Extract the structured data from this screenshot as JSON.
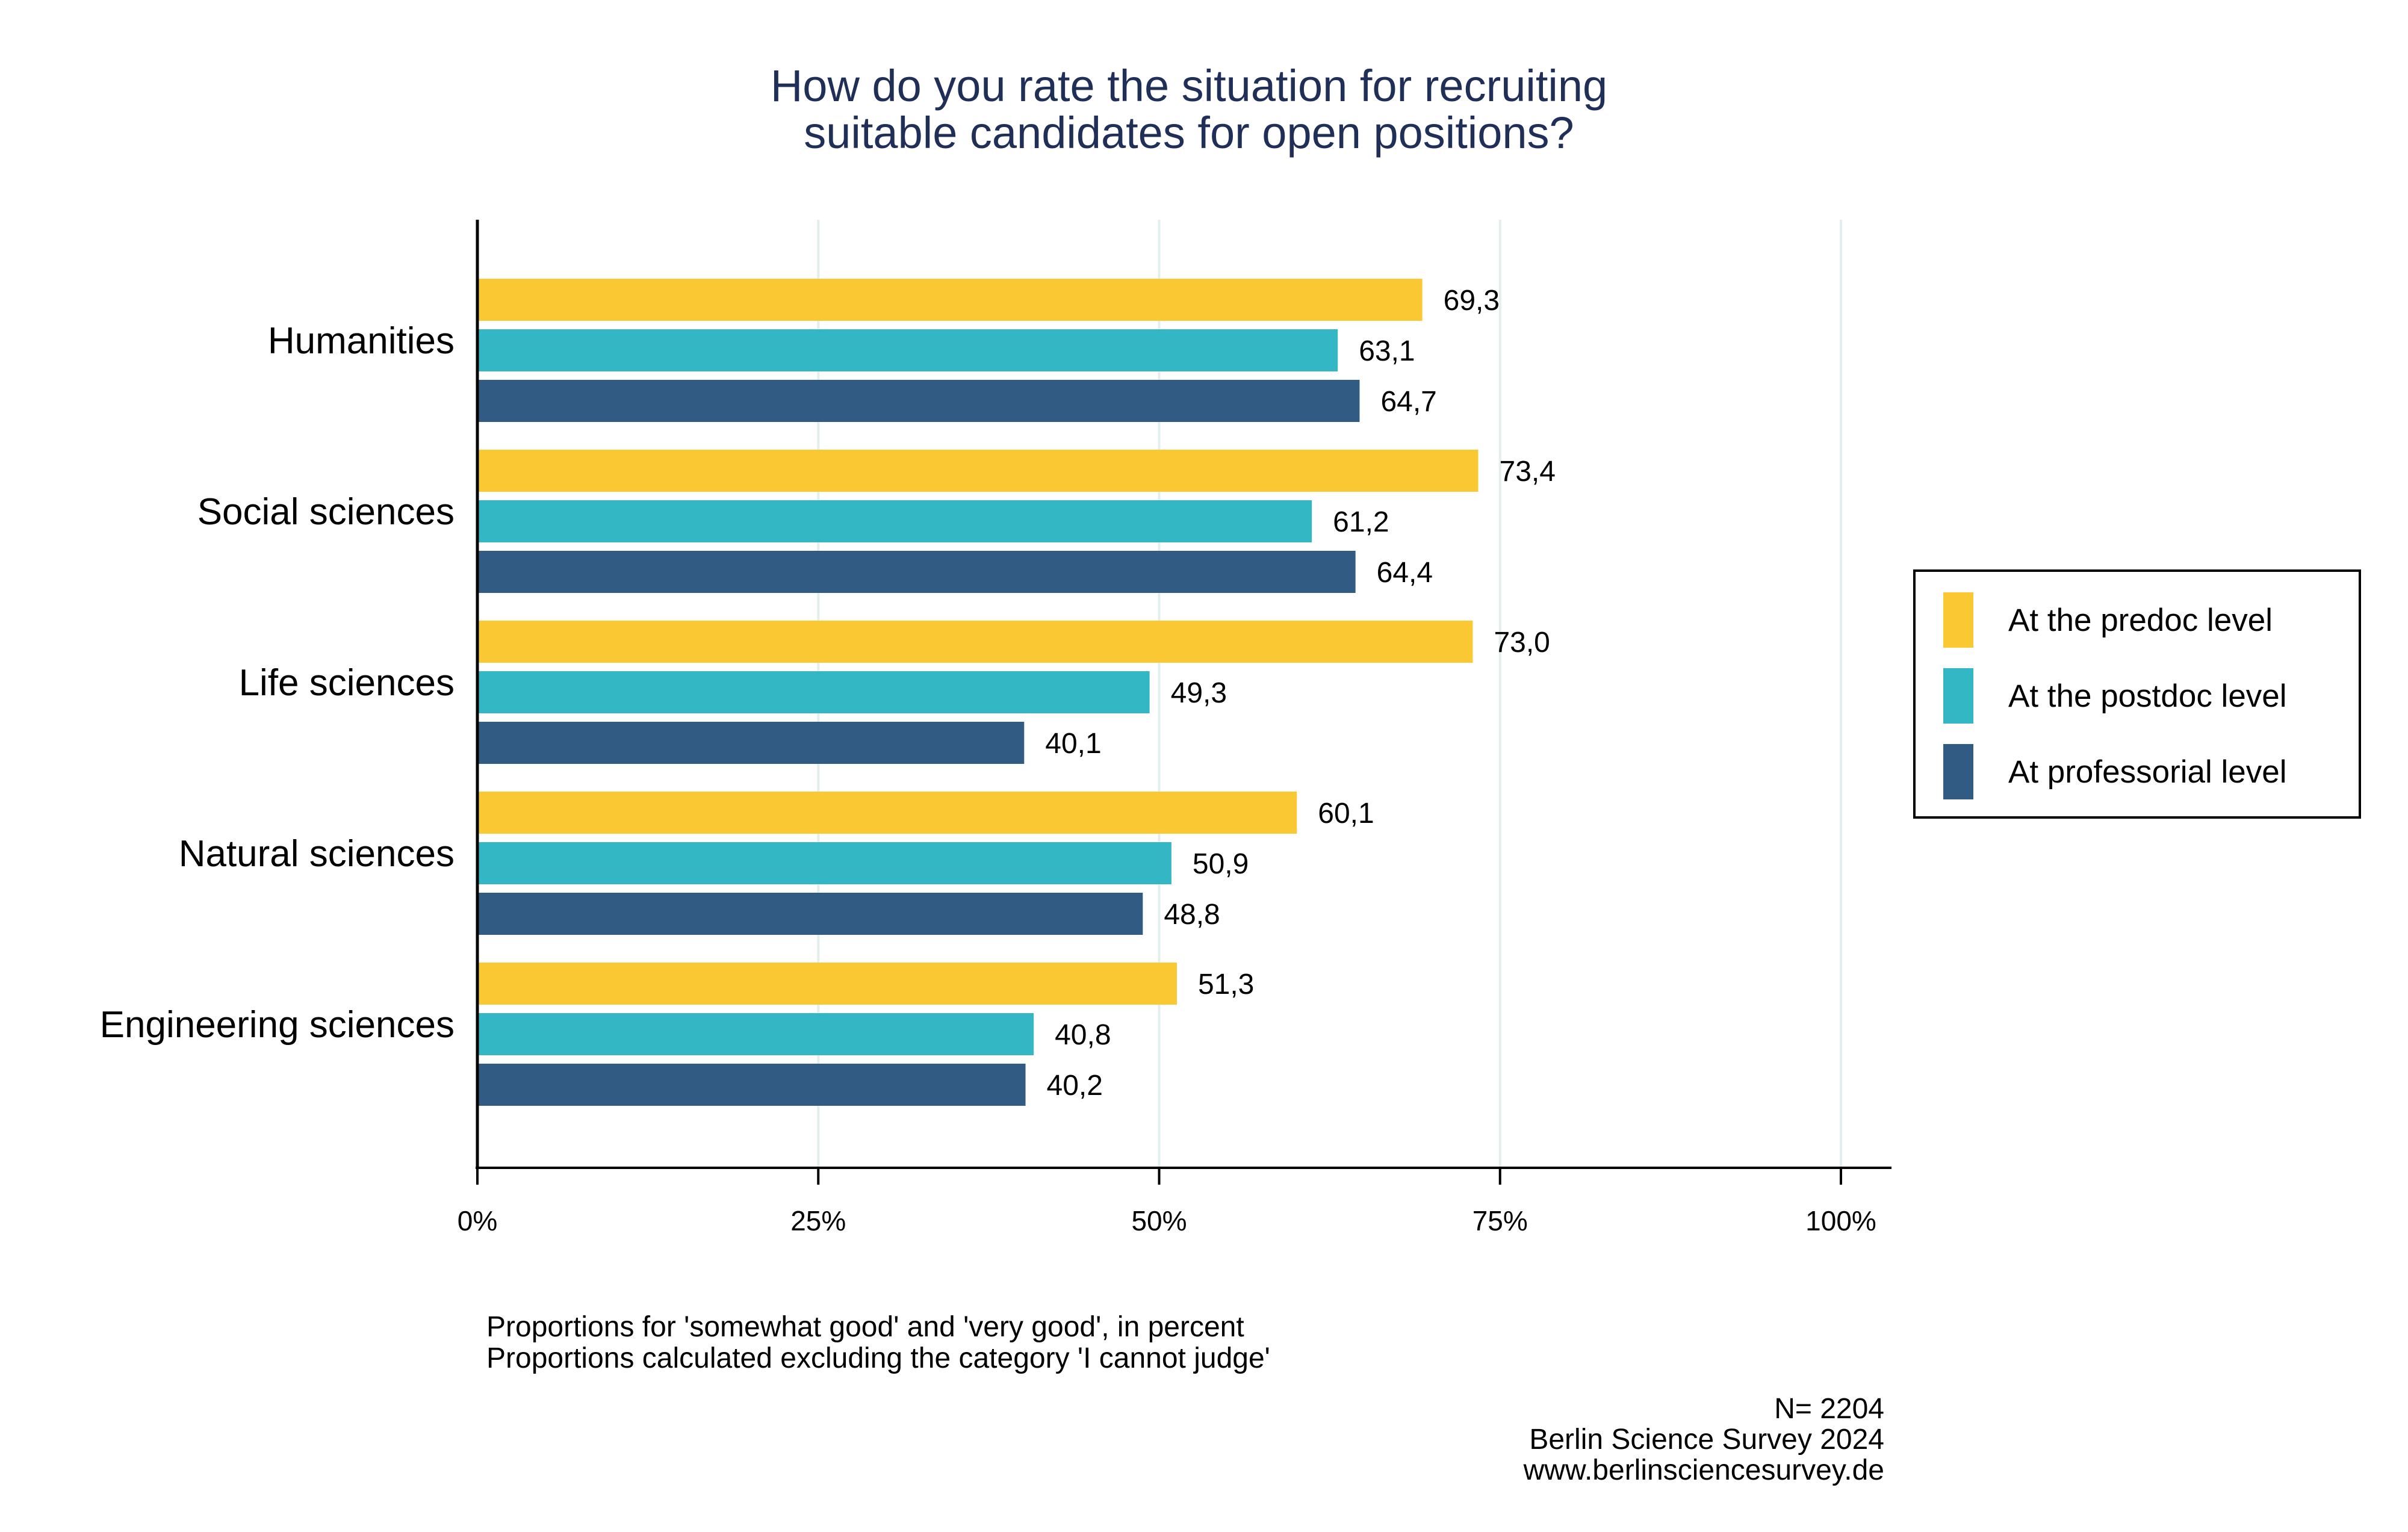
{
  "chart_data": {
    "type": "bar",
    "orientation": "horizontal",
    "title_lines": [
      "How do you rate the situation for recruiting",
      "suitable candidates for open positions?"
    ],
    "categories": [
      "Humanities",
      "Social sciences",
      "Life sciences",
      "Natural sciences",
      "Engineering sciences"
    ],
    "series": [
      {
        "name": "At the predoc level",
        "color": "#f9c832",
        "values": [
          69.3,
          73.4,
          73.0,
          60.1,
          51.3
        ],
        "labels": [
          "69,3",
          "73,4",
          "73,0",
          "60,1",
          "51,3"
        ]
      },
      {
        "name": "At the postdoc level",
        "color": "#34b7c4",
        "values": [
          63.1,
          61.2,
          49.3,
          50.9,
          40.8
        ],
        "labels": [
          "63,1",
          "61,2",
          "49,3",
          "50,9",
          "40,8"
        ]
      },
      {
        "name": "At professorial level",
        "color": "#325b84",
        "values": [
          64.7,
          64.4,
          40.1,
          48.8,
          40.2
        ],
        "labels": [
          "64,7",
          "64,4",
          "40,1",
          "48,8",
          "40,2"
        ]
      }
    ],
    "xlim": [
      0,
      100
    ],
    "xticks": [
      0,
      25,
      50,
      75,
      100
    ],
    "xtick_labels": [
      "0%",
      "25%",
      "50%",
      "75%",
      "100%"
    ],
    "grid": true,
    "legend_position": "right",
    "notes": [
      "Proportions for 'somewhat good' and 'very good', in percent",
      "Proportions calculated excluding the category 'I cannot judge'"
    ],
    "source_lines": [
      "N= 2204",
      "Berlin Science Survey 2024",
      "www.berlinsciencesurvey.de"
    ]
  }
}
